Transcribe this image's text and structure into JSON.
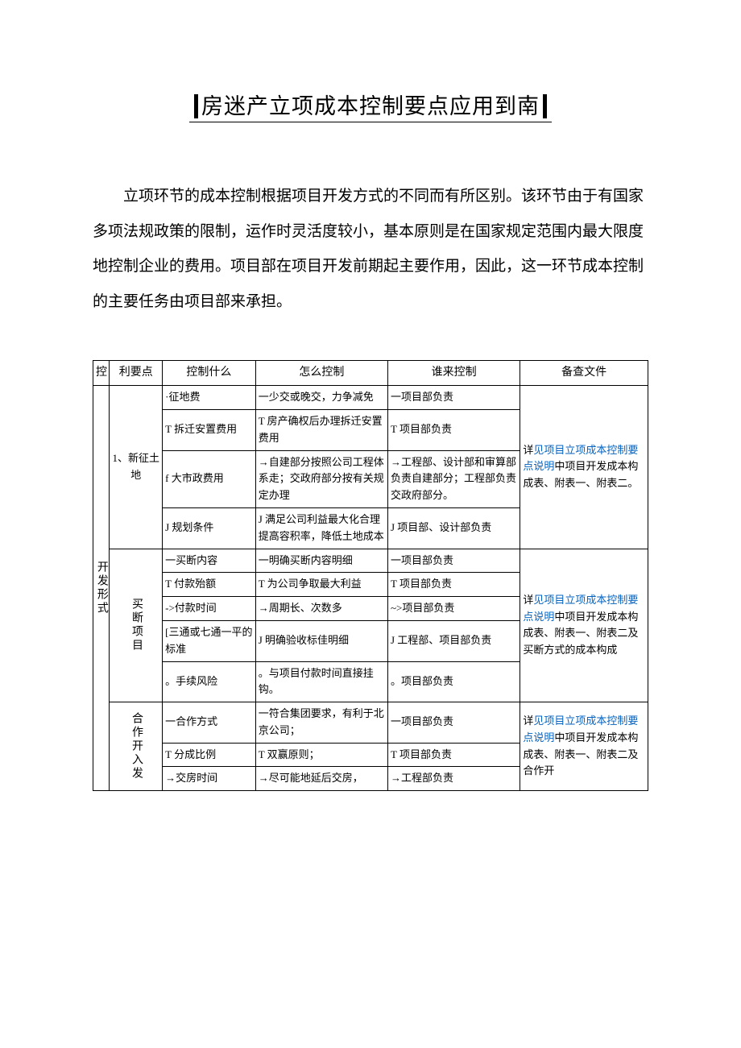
{
  "colors": {
    "text": "#000000",
    "bg": "#ffffff",
    "link": "#0563c1",
    "border": "#000000"
  },
  "title": "房迷产立项成本控制要点应用到南",
  "intro": "立项环节的成本控制根据项目开发方式的不同而有所区别。该环节由于有国家多项法规政策的限制，运作时灵活度较小，基本原则是在国家规定范围内最大限度地控制企业的费用。项目部在项目开发前期起主要作用，因此，这一环节成本控制的主要任务由项目部来承担。",
  "headers": {
    "c1": "控",
    "c2": "利要点",
    "c3": "控制什么",
    "c4": "怎么控制",
    "c5": "谁来控制",
    "c6": "备查文件"
  },
  "side_label": "开发形式",
  "group1": {
    "label": "1、新征土地",
    "rows": [
      {
        "what": "·征地费",
        "how": "一少交或晚交，力争减免",
        "who": "一项目部负责"
      },
      {
        "what": "T 拆迁安置费用",
        "how": "T 房产确权后办理拆迁安置费用",
        "who": "T 项目部负责"
      },
      {
        "what": "f 大市政费用",
        "how": "→自建部分按照公司工程体系走；交政府部分按有关规定办理",
        "who": "→工程部、设计部和审算部负责自建部分；工程部负责交政府部分。"
      },
      {
        "what": "J 规划条件",
        "how": "J 满足公司利益最大化合理提高容积率，降低土地成本",
        "who": "J 项目部、设计部负责"
      }
    ],
    "doc_prefix": "详",
    "doc_link": "见项目立项成本控制要点说明",
    "doc_suffix": "中项目开发成本构成表、附表一、附表二。"
  },
  "group2": {
    "label": "买断项目",
    "rows": [
      {
        "what": "一买断内容",
        "how": "一明确买断内容明细",
        "who": "一项目部负责"
      },
      {
        "what": "T 付款殆额",
        "how": "T 为公司争取最大利益",
        "who": "T 项目部负责"
      },
      {
        "what": "->付款时间",
        "how": "→周期长、次数多",
        "who": "~>项目部负责"
      },
      {
        "what": "[三通或七通一平的标准",
        "how": "J 明确验收标佳明细",
        "who": "J 工程部、项目部负责"
      },
      {
        "what": "。手续风险",
        "how": "。与项目付款时间直接挂钩。",
        "who": "。项目部负责"
      }
    ],
    "doc_prefix": "详",
    "doc_link": "见项目立项成本控制要点说明",
    "doc_suffix": "中项目开发成本构成表、附表一、附表二及买断方式的成本构成"
  },
  "group3": {
    "label": "合作开入发",
    "rows": [
      {
        "what": "一合作方式",
        "how": "一符合集团要求，有利于北京公司；",
        "who": "一项目部负责"
      },
      {
        "what": "T 分成比例",
        "how": "T 双赢原则；",
        "who": "T 项目部负责"
      },
      {
        "what": "→交房时间",
        "how": "→尽可能地延后交房，",
        "who": "→工程部负责"
      }
    ],
    "doc_prefix": "详",
    "doc_link": "见项目立项成本控制要点说明",
    "doc_suffix": "中项目开发成本构成表、附表一、附表二及合作开"
  }
}
